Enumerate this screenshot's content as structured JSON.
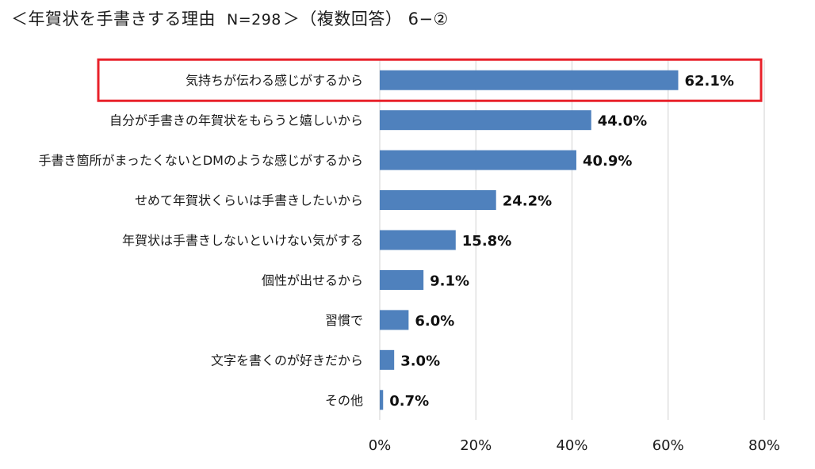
{
  "title": {
    "main": "＜年賀状を手書きする理由",
    "n": "N=298",
    "suffix": "＞（複数回答） 6−②"
  },
  "chart_data": {
    "type": "bar",
    "orientation": "horizontal",
    "categories": [
      "気持ちが伝わる感じがするから",
      "自分が手書きの年賀状をもらうと嬉しいから",
      "手書き箇所がまったくないとDMのような感じがするから",
      "せめて年賀状くらいは手書きしたいから",
      "年賀状は手書きしないといけない気がする",
      "個性が出せるから",
      "習慣で",
      "文字を書くのが好きだから",
      "その他"
    ],
    "values": [
      62.1,
      44.0,
      40.9,
      24.2,
      15.8,
      9.1,
      6.0,
      3.0,
      0.7
    ],
    "value_labels": [
      "62.1%",
      "44.0%",
      "40.9%",
      "24.2%",
      "15.8%",
      "9.1%",
      "6.0%",
      "3.0%",
      "0.7%"
    ],
    "xlim": [
      0,
      80
    ],
    "xticks": [
      0,
      20,
      40,
      60,
      80
    ],
    "xtick_labels": [
      "0%",
      "20%",
      "40%",
      "60%",
      "80%"
    ],
    "grid": true,
    "highlight_index": 0,
    "colors": {
      "bar": "#4f81bd",
      "grid": "#d9d9d9",
      "highlight": "#e8212a"
    }
  }
}
